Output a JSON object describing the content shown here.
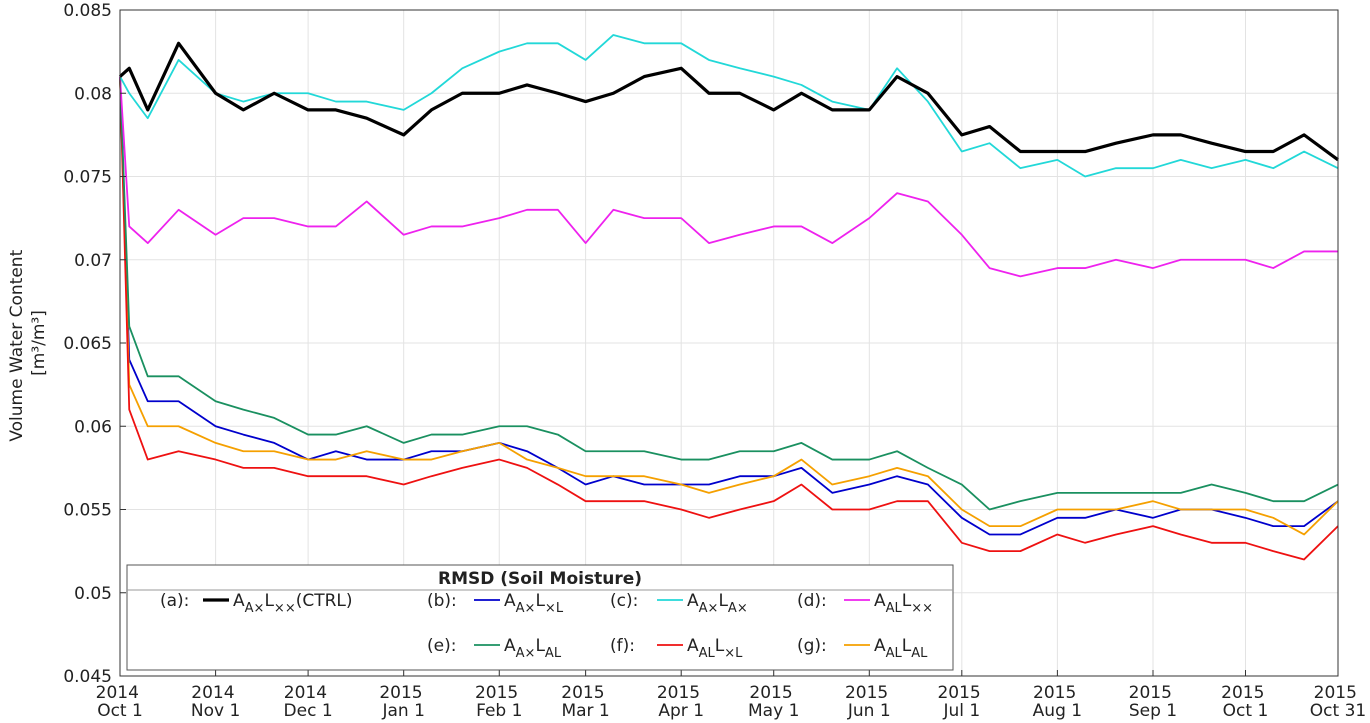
{
  "chart_data": {
    "type": "line",
    "y_label": [
      "Volume Water Content",
      "[m³/m³]"
    ],
    "legend_title": "RMSD (Soil Moisture)",
    "grid": true,
    "xlim": [
      "2014-10-01",
      "2015-10-31"
    ],
    "ylim": [
      0.045,
      0.085
    ],
    "yticks": [
      0.045,
      0.05,
      0.055,
      0.06,
      0.065,
      0.07,
      0.075,
      0.08,
      0.085
    ],
    "xticks": [
      {
        "value": "2014-10-01",
        "label": "2014 Oct 1"
      },
      {
        "value": "2014-11-01",
        "label": "2014 Nov 1"
      },
      {
        "value": "2014-12-01",
        "label": "2014 Dec 1"
      },
      {
        "value": "2015-01-01",
        "label": "2015 Jan 1"
      },
      {
        "value": "2015-02-01",
        "label": "2015 Feb 1"
      },
      {
        "value": "2015-03-01",
        "label": "2015 Mar 1"
      },
      {
        "value": "2015-04-01",
        "label": "2015 Apr 1"
      },
      {
        "value": "2015-05-01",
        "label": "2015 May 1"
      },
      {
        "value": "2015-06-01",
        "label": "2015 Jun 1"
      },
      {
        "value": "2015-07-01",
        "label": "2015 Jul 1"
      },
      {
        "value": "2015-08-01",
        "label": "2015 Aug 1"
      },
      {
        "value": "2015-09-01",
        "label": "2015 Sep 1"
      },
      {
        "value": "2015-10-01",
        "label": "2015 Oct 1"
      },
      {
        "value": "2015-10-31",
        "label": "2015 Oct 31"
      }
    ],
    "x": [
      "2014-10-01",
      "2014-10-04",
      "2014-10-10",
      "2014-10-20",
      "2014-11-01",
      "2014-11-10",
      "2014-11-20",
      "2014-12-01",
      "2014-12-10",
      "2014-12-20",
      "2015-01-01",
      "2015-01-10",
      "2015-01-20",
      "2015-02-01",
      "2015-02-10",
      "2015-02-20",
      "2015-03-01",
      "2015-03-10",
      "2015-03-20",
      "2015-04-01",
      "2015-04-10",
      "2015-04-20",
      "2015-05-01",
      "2015-05-10",
      "2015-05-20",
      "2015-06-01",
      "2015-06-10",
      "2015-06-20",
      "2015-07-01",
      "2015-07-10",
      "2015-07-20",
      "2015-08-01",
      "2015-08-10",
      "2015-08-20",
      "2015-09-01",
      "2015-09-10",
      "2015-09-20",
      "2015-10-01",
      "2015-10-10",
      "2015-10-20",
      "2015-10-31"
    ],
    "series": [
      {
        "label": "(a):",
        "name": [
          "A",
          "A×",
          "L",
          "××",
          "(CTRL)"
        ],
        "color": "#000000",
        "width": 3.2,
        "values": [
          0.081,
          0.0815,
          0.079,
          0.083,
          0.08,
          0.079,
          0.08,
          0.079,
          0.079,
          0.0785,
          0.0775,
          0.079,
          0.08,
          0.08,
          0.0805,
          0.08,
          0.0795,
          0.08,
          0.081,
          0.0815,
          0.08,
          0.08,
          0.079,
          0.08,
          0.079,
          0.079,
          0.081,
          0.08,
          0.0775,
          0.078,
          0.0765,
          0.0765,
          0.0765,
          0.077,
          0.0775,
          0.0775,
          0.077,
          0.0765,
          0.0765,
          0.0775,
          0.076
        ]
      },
      {
        "label": "(b):",
        "name": [
          "A",
          "A×",
          "L",
          "×L"
        ],
        "color": "#0000cc",
        "width": 1.8,
        "values": [
          0.081,
          0.064,
          0.0615,
          0.0615,
          0.06,
          0.0595,
          0.059,
          0.058,
          0.0585,
          0.058,
          0.058,
          0.0585,
          0.0585,
          0.059,
          0.0585,
          0.0575,
          0.0565,
          0.057,
          0.0565,
          0.0565,
          0.0565,
          0.057,
          0.057,
          0.0575,
          0.056,
          0.0565,
          0.057,
          0.0565,
          0.0545,
          0.0535,
          0.0535,
          0.0545,
          0.0545,
          0.055,
          0.0545,
          0.055,
          0.055,
          0.0545,
          0.054,
          0.054,
          0.0555
        ]
      },
      {
        "label": "(c):",
        "name": [
          "A",
          "A×",
          "L",
          "A×"
        ],
        "color": "#22d8d8",
        "width": 1.8,
        "values": [
          0.081,
          0.08,
          0.0785,
          0.082,
          0.08,
          0.0795,
          0.08,
          0.08,
          0.0795,
          0.0795,
          0.079,
          0.08,
          0.0815,
          0.0825,
          0.083,
          0.083,
          0.082,
          0.0835,
          0.083,
          0.083,
          0.082,
          0.0815,
          0.081,
          0.0805,
          0.0795,
          0.079,
          0.0815,
          0.0795,
          0.0765,
          0.077,
          0.0755,
          0.076,
          0.075,
          0.0755,
          0.0755,
          0.076,
          0.0755,
          0.076,
          0.0755,
          0.0765,
          0.0755
        ]
      },
      {
        "label": "(d):",
        "name": [
          "A",
          "AL",
          "L",
          "××"
        ],
        "color": "#ee22ee",
        "width": 1.8,
        "values": [
          0.081,
          0.072,
          0.071,
          0.073,
          0.0715,
          0.0725,
          0.0725,
          0.072,
          0.072,
          0.0735,
          0.0715,
          0.072,
          0.072,
          0.0725,
          0.073,
          0.073,
          0.071,
          0.073,
          0.0725,
          0.0725,
          0.071,
          0.0715,
          0.072,
          0.072,
          0.071,
          0.0725,
          0.074,
          0.0735,
          0.0715,
          0.0695,
          0.069,
          0.0695,
          0.0695,
          0.07,
          0.0695,
          0.07,
          0.07,
          0.07,
          0.0695,
          0.0705,
          0.0705
        ]
      },
      {
        "label": "(e):",
        "name": [
          "A",
          "A×",
          "L",
          "AL"
        ],
        "color": "#1a9060",
        "width": 1.8,
        "values": [
          0.081,
          0.066,
          0.063,
          0.063,
          0.0615,
          0.061,
          0.0605,
          0.0595,
          0.0595,
          0.06,
          0.059,
          0.0595,
          0.0595,
          0.06,
          0.06,
          0.0595,
          0.0585,
          0.0585,
          0.0585,
          0.058,
          0.058,
          0.0585,
          0.0585,
          0.059,
          0.058,
          0.058,
          0.0585,
          0.0575,
          0.0565,
          0.055,
          0.0555,
          0.056,
          0.056,
          0.056,
          0.056,
          0.056,
          0.0565,
          0.056,
          0.0555,
          0.0555,
          0.0565
        ]
      },
      {
        "label": "(f):",
        "name": [
          "A",
          "AL",
          "L",
          "×L"
        ],
        "color": "#ee1111",
        "width": 1.8,
        "values": [
          0.081,
          0.061,
          0.058,
          0.0585,
          0.058,
          0.0575,
          0.0575,
          0.057,
          0.057,
          0.057,
          0.0565,
          0.057,
          0.0575,
          0.058,
          0.0575,
          0.0565,
          0.0555,
          0.0555,
          0.0555,
          0.055,
          0.0545,
          0.055,
          0.0555,
          0.0565,
          0.055,
          0.055,
          0.0555,
          0.0555,
          0.053,
          0.0525,
          0.0525,
          0.0535,
          0.053,
          0.0535,
          0.054,
          0.0535,
          0.053,
          0.053,
          0.0525,
          0.052,
          0.054
        ]
      },
      {
        "label": "(g):",
        "name": [
          "A",
          "AL",
          "L",
          "AL"
        ],
        "color": "#f5a000",
        "width": 1.8,
        "values": [
          0.081,
          0.0625,
          0.06,
          0.06,
          0.059,
          0.0585,
          0.0585,
          0.058,
          0.058,
          0.0585,
          0.058,
          0.058,
          0.0585,
          0.059,
          0.058,
          0.0575,
          0.057,
          0.057,
          0.057,
          0.0565,
          0.056,
          0.0565,
          0.057,
          0.058,
          0.0565,
          0.057,
          0.0575,
          0.057,
          0.055,
          0.054,
          0.054,
          0.055,
          0.055,
          0.055,
          0.0555,
          0.055,
          0.055,
          0.055,
          0.0545,
          0.0535,
          0.0555
        ]
      }
    ]
  }
}
